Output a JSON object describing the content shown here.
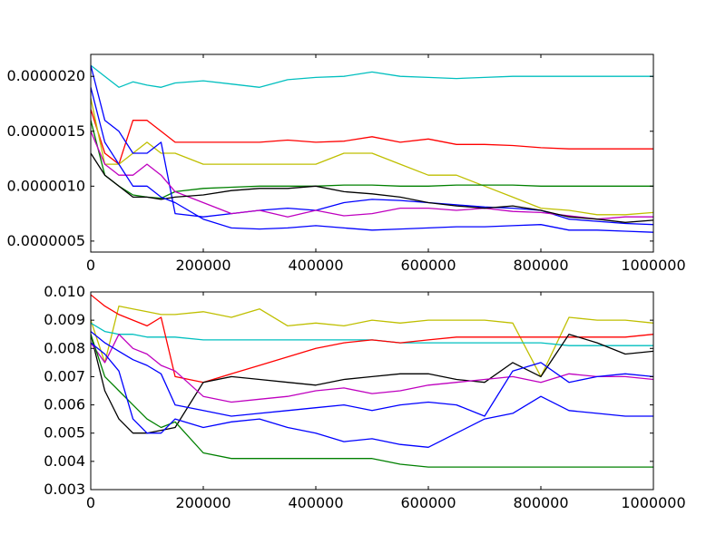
{
  "chart_data": [
    {
      "type": "line",
      "title": "",
      "xlabel": "",
      "ylabel": "",
      "xlim": [
        0,
        1000000
      ],
      "ylim": [
        4e-07,
        2.2e-06
      ],
      "grid": false,
      "legend": "none",
      "x_ticks": [
        0,
        200000,
        400000,
        600000,
        800000,
        1000000
      ],
      "x_tick_labels": [
        "0",
        "200000",
        "400000",
        "600000",
        "800000",
        "1000000"
      ],
      "y_ticks": [
        5e-07,
        1e-06,
        1.5e-06,
        2e-06
      ],
      "y_tick_labels": [
        "0.0000005",
        "0.0000010",
        "0.0000015",
        "0.0000020"
      ],
      "x": [
        0,
        25000,
        50000,
        75000,
        100000,
        125000,
        150000,
        200000,
        250000,
        300000,
        350000,
        400000,
        450000,
        500000,
        550000,
        600000,
        650000,
        700000,
        750000,
        800000,
        850000,
        900000,
        950000,
        1000000
      ],
      "series": [
        {
          "color": "#00bfbf",
          "values": [
            2.1e-06,
            2e-06,
            1.9e-06,
            1.95e-06,
            1.92e-06,
            1.9e-06,
            1.94e-06,
            1.96e-06,
            1.93e-06,
            1.9e-06,
            1.97e-06,
            1.99e-06,
            2e-06,
            2.04e-06,
            2e-06,
            1.99e-06,
            1.98e-06,
            1.99e-06,
            2e-06,
            2e-06,
            2e-06,
            2e-06,
            2e-06,
            2e-06
          ]
        },
        {
          "color": "#ff0000",
          "values": [
            1.7e-06,
            1.3e-06,
            1.2e-06,
            1.6e-06,
            1.6e-06,
            1.5e-06,
            1.4e-06,
            1.4e-06,
            1.4e-06,
            1.4e-06,
            1.42e-06,
            1.4e-06,
            1.41e-06,
            1.45e-06,
            1.4e-06,
            1.43e-06,
            1.38e-06,
            1.38e-06,
            1.37e-06,
            1.35e-06,
            1.34e-06,
            1.34e-06,
            1.34e-06,
            1.34e-06
          ]
        },
        {
          "color": "#bfbf00",
          "values": [
            1.8e-06,
            1.2e-06,
            1.2e-06,
            1.3e-06,
            1.4e-06,
            1.3e-06,
            1.3e-06,
            1.2e-06,
            1.2e-06,
            1.2e-06,
            1.2e-06,
            1.2e-06,
            1.3e-06,
            1.3e-06,
            1.2e-06,
            1.1e-06,
            1.1e-06,
            1e-06,
            9e-07,
            8e-07,
            7.8e-07,
            7.4e-07,
            7.4e-07,
            7.6e-07
          ]
        },
        {
          "color": "#008000",
          "values": [
            1.6e-06,
            1.1e-06,
            1e-06,
            9.2e-07,
            9e-07,
            8.9e-07,
            9.5e-07,
            9.8e-07,
            9.9e-07,
            1e-06,
            1e-06,
            1e-06,
            1.01e-06,
            1.01e-06,
            1e-06,
            1e-06,
            1.01e-06,
            1.01e-06,
            1.01e-06,
            1e-06,
            1e-06,
            1e-06,
            1e-06,
            1e-06
          ]
        },
        {
          "color": "#0000ff",
          "values": [
            2.1e-06,
            1.6e-06,
            1.5e-06,
            1.3e-06,
            1.3e-06,
            1.4e-06,
            7.5e-07,
            7.2e-07,
            7.5e-07,
            7.8e-07,
            8e-07,
            7.8e-07,
            8.5e-07,
            8.8e-07,
            8.7e-07,
            8.5e-07,
            8.3e-07,
            8.1e-07,
            8e-07,
            7.8e-07,
            7e-07,
            6.8e-07,
            6.6e-07,
            6.5e-07
          ]
        },
        {
          "color": "#bf00bf",
          "values": [
            1.5e-06,
            1.2e-06,
            1.1e-06,
            1.1e-06,
            1.2e-06,
            1.1e-06,
            9.5e-07,
            8.5e-07,
            7.5e-07,
            7.8e-07,
            7.2e-07,
            7.8e-07,
            7.3e-07,
            7.5e-07,
            8e-07,
            8e-07,
            7.8e-07,
            8e-07,
            7.7e-07,
            7.6e-07,
            7.3e-07,
            7e-07,
            7.2e-07,
            7.2e-07
          ]
        },
        {
          "color": "#000000",
          "values": [
            1.3e-06,
            1.1e-06,
            1e-06,
            9e-07,
            9e-07,
            8.8e-07,
            9e-07,
            9.2e-07,
            9.6e-07,
            9.8e-07,
            9.8e-07,
            1e-06,
            9.5e-07,
            9.3e-07,
            9e-07,
            8.5e-07,
            8.2e-07,
            8e-07,
            8.2e-07,
            7.8e-07,
            7.2e-07,
            7e-07,
            6.7e-07,
            6.9e-07
          ]
        },
        {
          "color": "#0000ff",
          "values": [
            1.9e-06,
            1.4e-06,
            1.2e-06,
            1e-06,
            1e-06,
            9e-07,
            8.5e-07,
            7e-07,
            6.2e-07,
            6.1e-07,
            6.2e-07,
            6.4e-07,
            6.2e-07,
            6e-07,
            6.1e-07,
            6.2e-07,
            6.3e-07,
            6.3e-07,
            6.4e-07,
            6.5e-07,
            6e-07,
            6e-07,
            5.9e-07,
            5.8e-07
          ]
        }
      ]
    },
    {
      "type": "line",
      "title": "",
      "xlabel": "",
      "ylabel": "",
      "xlim": [
        0,
        1000000
      ],
      "ylim": [
        0.003,
        0.01
      ],
      "grid": false,
      "legend": "none",
      "x_ticks": [
        0,
        200000,
        400000,
        600000,
        800000,
        1000000
      ],
      "x_tick_labels": [
        "0",
        "200000",
        "400000",
        "600000",
        "800000",
        "1000000"
      ],
      "y_ticks": [
        0.003,
        0.004,
        0.005,
        0.006,
        0.007,
        0.008,
        0.009,
        0.01
      ],
      "y_tick_labels": [
        "0.003",
        "0.004",
        "0.005",
        "0.006",
        "0.007",
        "0.008",
        "0.009",
        "0.010"
      ],
      "x": [
        0,
        25000,
        50000,
        75000,
        100000,
        125000,
        150000,
        200000,
        250000,
        300000,
        350000,
        400000,
        450000,
        500000,
        550000,
        600000,
        650000,
        700000,
        750000,
        800000,
        850000,
        900000,
        950000,
        1000000
      ],
      "series": [
        {
          "color": "#bfbf00",
          "values": [
            0.009,
            0.0075,
            0.0095,
            0.0094,
            0.0093,
            0.0092,
            0.0092,
            0.0093,
            0.0091,
            0.0094,
            0.0088,
            0.0089,
            0.0088,
            0.009,
            0.0089,
            0.009,
            0.009,
            0.009,
            0.0089,
            0.007,
            0.0091,
            0.009,
            0.009,
            0.0089
          ]
        },
        {
          "color": "#00bfbf",
          "values": [
            0.0089,
            0.0086,
            0.0085,
            0.0085,
            0.0084,
            0.0084,
            0.0084,
            0.0083,
            0.0083,
            0.0083,
            0.0083,
            0.0083,
            0.0083,
            0.0083,
            0.0082,
            0.0082,
            0.0082,
            0.0082,
            0.0082,
            0.0082,
            0.0081,
            0.0081,
            0.0081,
            0.0081
          ]
        },
        {
          "color": "#ff0000",
          "values": [
            0.0099,
            0.0095,
            0.0092,
            0.009,
            0.0088,
            0.0091,
            0.007,
            0.0068,
            0.0071,
            0.0074,
            0.0077,
            0.008,
            0.0082,
            0.0083,
            0.0082,
            0.0083,
            0.0084,
            0.0084,
            0.0084,
            0.0084,
            0.0084,
            0.0084,
            0.0084,
            0.0085
          ]
        },
        {
          "color": "#000000",
          "values": [
            0.0085,
            0.0065,
            0.0055,
            0.005,
            0.005,
            0.0051,
            0.0052,
            0.0068,
            0.007,
            0.0069,
            0.0068,
            0.0067,
            0.0069,
            0.007,
            0.0071,
            0.0071,
            0.0069,
            0.0068,
            0.0075,
            0.007,
            0.0085,
            0.0082,
            0.0078,
            0.0079
          ]
        },
        {
          "color": "#bf00bf",
          "values": [
            0.0082,
            0.0075,
            0.0085,
            0.008,
            0.0078,
            0.0074,
            0.0072,
            0.0063,
            0.0061,
            0.0062,
            0.0063,
            0.0065,
            0.0066,
            0.0064,
            0.0065,
            0.0067,
            0.0068,
            0.0069,
            0.007,
            0.0068,
            0.0071,
            0.007,
            0.007,
            0.0069
          ]
        },
        {
          "color": "#0000ff",
          "values": [
            0.0086,
            0.0082,
            0.0079,
            0.0076,
            0.0074,
            0.0071,
            0.006,
            0.0058,
            0.0056,
            0.0057,
            0.0058,
            0.0059,
            0.006,
            0.0058,
            0.006,
            0.0061,
            0.006,
            0.0056,
            0.0072,
            0.0075,
            0.0068,
            0.007,
            0.0071,
            0.007
          ]
        },
        {
          "color": "#008000",
          "values": [
            0.0085,
            0.007,
            0.0065,
            0.006,
            0.0055,
            0.0052,
            0.0054,
            0.0043,
            0.0041,
            0.0041,
            0.0041,
            0.0041,
            0.0041,
            0.0041,
            0.0039,
            0.0038,
            0.0038,
            0.0038,
            0.0038,
            0.0038,
            0.0038,
            0.0038,
            0.0038,
            0.0038
          ]
        },
        {
          "color": "#0000ff",
          "values": [
            0.0082,
            0.0078,
            0.0072,
            0.0055,
            0.005,
            0.005,
            0.0055,
            0.0052,
            0.0054,
            0.0055,
            0.0052,
            0.005,
            0.0047,
            0.0048,
            0.0046,
            0.0045,
            0.005,
            0.0055,
            0.0057,
            0.0063,
            0.0058,
            0.0057,
            0.0056,
            0.0056
          ]
        }
      ]
    }
  ]
}
